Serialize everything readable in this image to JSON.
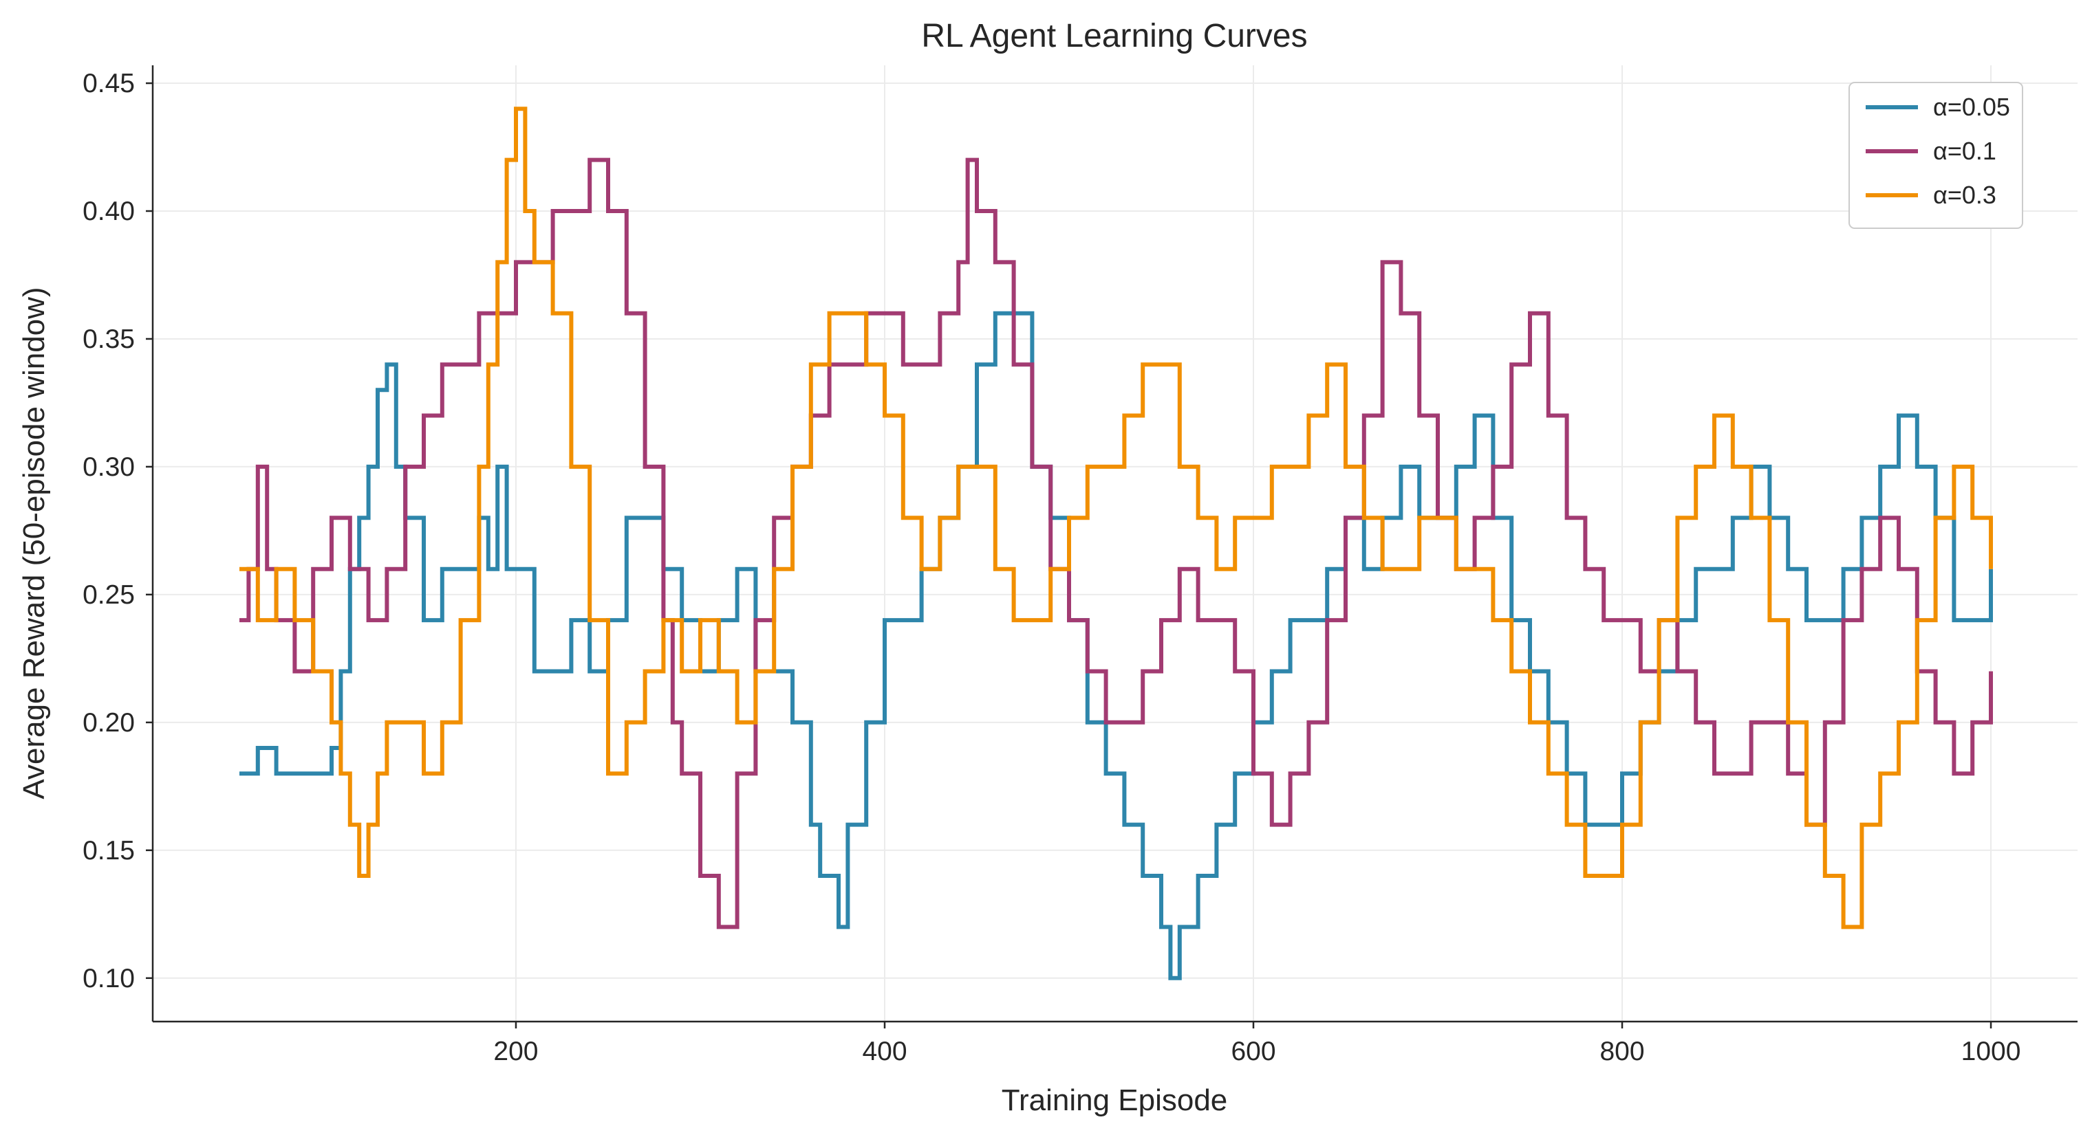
{
  "chart_data": {
    "type": "line",
    "title": "RL Agent Learning Curves",
    "xlabel": "Training Episode",
    "ylabel": "Average Reward (50-episode window)",
    "xlim": [
      3,
      1047
    ],
    "ylim": [
      0.083,
      0.457
    ],
    "xticks": [
      200,
      400,
      600,
      800,
      1000
    ],
    "yticks": [
      0.1,
      0.15,
      0.2,
      0.25,
      0.3,
      0.35,
      0.4,
      0.45
    ],
    "xtick_labels": [
      "200",
      "400",
      "600",
      "800",
      "1000"
    ],
    "ytick_labels": [
      "0.10",
      "0.15",
      "0.20",
      "0.25",
      "0.30",
      "0.35",
      "0.40",
      "0.45"
    ],
    "grid": true,
    "legend_position": "top-right",
    "step": "steps-post",
    "series": [
      {
        "name": "α=0.05",
        "color": "#2E86AB",
        "x": [
          50,
          60,
          70,
          80,
          90,
          95,
          100,
          105,
          110,
          115,
          120,
          125,
          130,
          135,
          140,
          150,
          160,
          170,
          180,
          185,
          190,
          195,
          200,
          210,
          220,
          230,
          240,
          250,
          260,
          270,
          280,
          290,
          300,
          310,
          320,
          330,
          340,
          350,
          360,
          365,
          370,
          375,
          380,
          390,
          400,
          410,
          420,
          430,
          440,
          450,
          460,
          470,
          480,
          490,
          500,
          510,
          520,
          530,
          540,
          550,
          555,
          560,
          570,
          580,
          590,
          600,
          610,
          620,
          630,
          640,
          650,
          660,
          670,
          680,
          690,
          700,
          710,
          720,
          730,
          740,
          750,
          760,
          770,
          780,
          790,
          800,
          810,
          820,
          830,
          840,
          850,
          860,
          870,
          880,
          890,
          900,
          910,
          920,
          930,
          940,
          950,
          960,
          970,
          980,
          990,
          1000
        ],
        "values": [
          0.18,
          0.19,
          0.18,
          0.18,
          0.18,
          0.18,
          0.19,
          0.22,
          0.26,
          0.28,
          0.3,
          0.33,
          0.34,
          0.3,
          0.28,
          0.24,
          0.26,
          0.26,
          0.28,
          0.26,
          0.3,
          0.26,
          0.26,
          0.22,
          0.22,
          0.24,
          0.22,
          0.24,
          0.28,
          0.28,
          0.26,
          0.24,
          0.22,
          0.24,
          0.26,
          0.22,
          0.22,
          0.2,
          0.16,
          0.14,
          0.14,
          0.12,
          0.16,
          0.2,
          0.24,
          0.24,
          0.26,
          0.28,
          0.3,
          0.34,
          0.36,
          0.36,
          0.3,
          0.28,
          0.24,
          0.2,
          0.18,
          0.16,
          0.14,
          0.12,
          0.1,
          0.12,
          0.14,
          0.16,
          0.18,
          0.2,
          0.22,
          0.24,
          0.24,
          0.26,
          0.28,
          0.26,
          0.28,
          0.3,
          0.28,
          0.28,
          0.3,
          0.32,
          0.28,
          0.24,
          0.22,
          0.2,
          0.18,
          0.16,
          0.16,
          0.18,
          0.2,
          0.22,
          0.24,
          0.26,
          0.26,
          0.28,
          0.3,
          0.28,
          0.26,
          0.24,
          0.24,
          0.26,
          0.28,
          0.3,
          0.32,
          0.3,
          0.28,
          0.24,
          0.24,
          0.26
        ]
      },
      {
        "name": "α=0.1",
        "color": "#A23B72",
        "x": [
          50,
          55,
          60,
          65,
          70,
          80,
          90,
          100,
          110,
          120,
          130,
          140,
          150,
          160,
          170,
          180,
          190,
          200,
          210,
          220,
          230,
          240,
          245,
          250,
          260,
          270,
          280,
          285,
          290,
          300,
          310,
          320,
          330,
          340,
          350,
          360,
          370,
          380,
          390,
          400,
          410,
          420,
          430,
          440,
          445,
          450,
          460,
          470,
          480,
          490,
          500,
          510,
          520,
          530,
          540,
          550,
          560,
          570,
          580,
          590,
          600,
          610,
          620,
          630,
          640,
          650,
          660,
          670,
          680,
          690,
          700,
          710,
          720,
          730,
          740,
          750,
          760,
          770,
          780,
          790,
          800,
          810,
          820,
          830,
          840,
          850,
          860,
          870,
          880,
          890,
          900,
          910,
          920,
          930,
          940,
          950,
          960,
          970,
          980,
          990,
          1000
        ],
        "values": [
          0.24,
          0.26,
          0.3,
          0.26,
          0.24,
          0.22,
          0.26,
          0.28,
          0.26,
          0.24,
          0.26,
          0.3,
          0.32,
          0.34,
          0.34,
          0.36,
          0.36,
          0.38,
          0.38,
          0.4,
          0.4,
          0.42,
          0.42,
          0.4,
          0.36,
          0.3,
          0.24,
          0.2,
          0.18,
          0.14,
          0.12,
          0.18,
          0.24,
          0.28,
          0.3,
          0.32,
          0.34,
          0.34,
          0.36,
          0.36,
          0.34,
          0.34,
          0.36,
          0.38,
          0.42,
          0.4,
          0.38,
          0.34,
          0.3,
          0.26,
          0.24,
          0.22,
          0.2,
          0.2,
          0.22,
          0.24,
          0.26,
          0.24,
          0.24,
          0.22,
          0.18,
          0.16,
          0.18,
          0.2,
          0.24,
          0.28,
          0.32,
          0.38,
          0.36,
          0.32,
          0.28,
          0.26,
          0.28,
          0.3,
          0.34,
          0.36,
          0.32,
          0.28,
          0.26,
          0.24,
          0.24,
          0.22,
          0.24,
          0.22,
          0.2,
          0.18,
          0.18,
          0.2,
          0.2,
          0.18,
          0.16,
          0.2,
          0.24,
          0.26,
          0.28,
          0.26,
          0.22,
          0.2,
          0.18,
          0.2,
          0.22
        ]
      },
      {
        "name": "α=0.3",
        "color": "#F18F01",
        "x": [
          50,
          60,
          70,
          80,
          90,
          100,
          105,
          110,
          115,
          120,
          125,
          130,
          140,
          150,
          160,
          170,
          180,
          185,
          190,
          195,
          200,
          205,
          210,
          220,
          230,
          240,
          250,
          260,
          270,
          280,
          290,
          300,
          310,
          320,
          330,
          340,
          350,
          360,
          370,
          380,
          390,
          400,
          410,
          420,
          430,
          440,
          450,
          460,
          470,
          480,
          490,
          500,
          510,
          520,
          530,
          540,
          550,
          560,
          570,
          580,
          590,
          600,
          610,
          620,
          630,
          640,
          650,
          660,
          670,
          680,
          690,
          700,
          710,
          720,
          730,
          740,
          750,
          760,
          770,
          780,
          790,
          800,
          810,
          820,
          830,
          840,
          850,
          860,
          870,
          880,
          890,
          900,
          910,
          920,
          930,
          940,
          950,
          960,
          970,
          980,
          990,
          1000
        ],
        "values": [
          0.26,
          0.24,
          0.26,
          0.24,
          0.22,
          0.2,
          0.18,
          0.16,
          0.14,
          0.16,
          0.18,
          0.2,
          0.2,
          0.18,
          0.2,
          0.24,
          0.3,
          0.34,
          0.38,
          0.42,
          0.44,
          0.4,
          0.38,
          0.36,
          0.3,
          0.24,
          0.18,
          0.2,
          0.22,
          0.24,
          0.22,
          0.24,
          0.22,
          0.2,
          0.22,
          0.26,
          0.3,
          0.34,
          0.36,
          0.36,
          0.34,
          0.32,
          0.28,
          0.26,
          0.28,
          0.3,
          0.3,
          0.26,
          0.24,
          0.24,
          0.26,
          0.28,
          0.3,
          0.3,
          0.32,
          0.34,
          0.34,
          0.3,
          0.28,
          0.26,
          0.28,
          0.28,
          0.3,
          0.3,
          0.32,
          0.34,
          0.3,
          0.28,
          0.26,
          0.26,
          0.28,
          0.28,
          0.26,
          0.26,
          0.24,
          0.22,
          0.2,
          0.18,
          0.16,
          0.14,
          0.14,
          0.16,
          0.2,
          0.24,
          0.28,
          0.3,
          0.32,
          0.3,
          0.28,
          0.24,
          0.2,
          0.16,
          0.14,
          0.12,
          0.16,
          0.18,
          0.2,
          0.24,
          0.28,
          0.3,
          0.28,
          0.26
        ]
      }
    ]
  }
}
